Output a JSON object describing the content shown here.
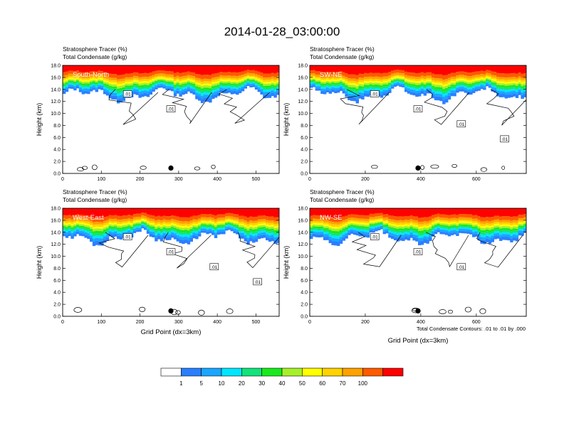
{
  "title": "2014-01-28_03:00:00",
  "footnote": "Total Condensate Contours: .01 to .01 by .000",
  "colorbar": {
    "labels": [
      "1",
      "5",
      "10",
      "20",
      "30",
      "40",
      "50",
      "60",
      "70",
      "100"
    ],
    "colors": [
      "#ffffff",
      "#2a7fff",
      "#1aa6ff",
      "#00e6ff",
      "#12e37a",
      "#19ea1c",
      "#a6f02a",
      "#ffff00",
      "#ffd200",
      "#ffa200",
      "#ff5a00",
      "#ff0000"
    ]
  },
  "chart_data": [
    {
      "type": "heatmap",
      "panel": "South-North",
      "header_lines": [
        "Stratosphere Tracer   (%)",
        "Total Condensate   (g/kg)"
      ],
      "ylabel": "Height (km)",
      "xlabel": "",
      "xlim": [
        0,
        560
      ],
      "ylim": [
        0,
        18
      ],
      "xticks": [
        "0",
        "100",
        "200",
        "300",
        "400",
        "500"
      ],
      "yticks": [
        "0.0",
        "2.0",
        "4.0",
        "6.0",
        "8.0",
        "10.0",
        "12.0",
        "14.0",
        "16.0",
        "18.0"
      ],
      "contour_labels": [
        ".01",
        ".01"
      ],
      "tracer_top_km": [
        16.5,
        16.0,
        15.5,
        15.0,
        14.5,
        14.2,
        14.0,
        13.8
      ],
      "tracer_100pct_above_km": 16.8
    },
    {
      "type": "heatmap",
      "panel": "SW-NE",
      "header_lines": [
        "Stratosphere Tracer   (%)",
        "Total Condensate   (g/kg)"
      ],
      "ylabel": "Height (km)",
      "xlabel": "",
      "xlim": [
        0,
        780
      ],
      "ylim": [
        0,
        18
      ],
      "xticks": [
        "0",
        "200",
        "400",
        "600"
      ],
      "yticks": [
        "0.0",
        "2.0",
        "4.0",
        "6.0",
        "8.0",
        "10.0",
        "12.0",
        "14.0",
        "16.0",
        "18.0"
      ],
      "contour_labels": [
        ".01",
        ".01",
        ".01",
        ".01"
      ],
      "tracer_top_km": [
        16.5,
        16.0,
        15.5,
        15.0,
        14.5,
        14.2,
        14.0,
        13.8
      ],
      "tracer_100pct_above_km": 16.8
    },
    {
      "type": "heatmap",
      "panel": "West-East",
      "header_lines": [
        "Stratosphere Tracer   (%)",
        "Total Condensate   (g/kg)"
      ],
      "ylabel": "Height (km)",
      "xlabel": "Grid Point (dx=3km)",
      "xlim": [
        0,
        560
      ],
      "ylim": [
        0,
        18
      ],
      "xticks": [
        "0",
        "100",
        "200",
        "300",
        "400",
        "500"
      ],
      "yticks": [
        "0.0",
        "2.0",
        "4.0",
        "6.0",
        "8.0",
        "10.0",
        "12.0",
        "14.0",
        "16.0",
        "18.0"
      ],
      "contour_labels": [
        ".01",
        ".01",
        ".01",
        ".01"
      ],
      "tracer_top_km": [
        16.5,
        16.0,
        15.5,
        15.0,
        14.5,
        14.2,
        14.0,
        13.8
      ],
      "tracer_100pct_above_km": 16.8
    },
    {
      "type": "heatmap",
      "panel": "NW-SE",
      "header_lines": [
        "Stratosphere Tracer   (%)",
        "Total Condensate   (g/kg)"
      ],
      "ylabel": "Height (km)",
      "xlabel": "Grid Point (dx=3km)",
      "xlim": [
        0,
        780
      ],
      "ylim": [
        0,
        18
      ],
      "xticks": [
        "0",
        "200",
        "400",
        "600"
      ],
      "yticks": [
        "0.0",
        "2.0",
        "4.0",
        "6.0",
        "8.0",
        "10.0",
        "12.0",
        "14.0",
        "16.0",
        "18.0"
      ],
      "contour_labels": [
        ".01",
        ".01",
        ".01"
      ],
      "tracer_top_km": [
        16.5,
        16.0,
        15.5,
        15.0,
        14.5,
        14.2,
        14.0,
        13.8
      ],
      "tracer_100pct_above_km": 16.8
    }
  ]
}
